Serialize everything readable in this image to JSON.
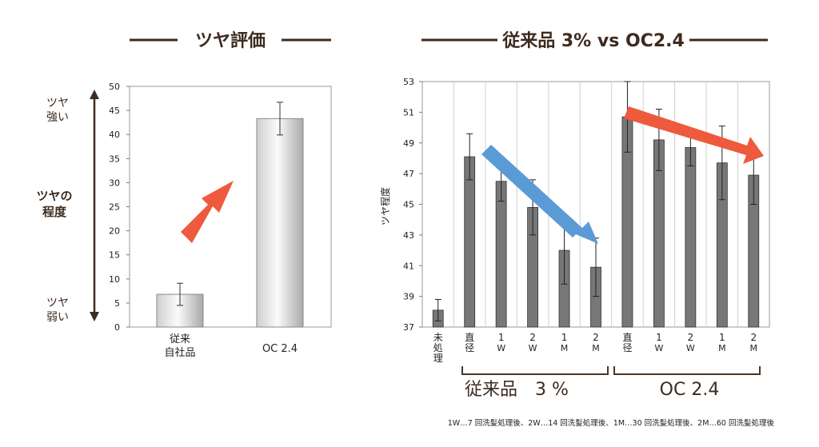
{
  "footnote": "1W…7 回洗髪処理後、2W…14 回洗髪処理後、1M…30 回洗髪処理後、2M…60 回洗髪処理後",
  "colors": {
    "title_text": "#3d2b1f",
    "accent_orange": "#e87a2a",
    "arrow_red": "#ee5a3d",
    "arrow_blue": "#5b9bd5",
    "right_bars": "#777777"
  },
  "charts": [
    {
      "title": "ツヤ評価",
      "side_labels": {
        "strong": [
          "ツヤ",
          "強い"
        ],
        "middle": [
          "ツヤの",
          "程度"
        ],
        "weak": [
          "ツヤ",
          "弱い"
        ]
      }
    },
    {
      "title": "従来品 3% vs OC2.4",
      "ylabel": "ツヤ程度",
      "groups": [
        "従来品　3 %",
        "OC 2.4"
      ]
    }
  ],
  "chart_data": [
    {
      "type": "bar",
      "title": "ツヤ評価",
      "categories": [
        "従来\n自社品",
        "OC 2.4"
      ],
      "category_colors": [
        "#222222",
        "#e87a2a"
      ],
      "values": [
        6.8,
        43.3
      ],
      "errors": [
        2.3,
        3.4
      ],
      "ylim": [
        0,
        50
      ],
      "yticks": [
        0,
        5,
        10,
        15,
        20,
        25,
        30,
        35,
        40,
        45,
        50
      ],
      "grid": false
    },
    {
      "type": "bar",
      "title": "従来品 3% vs OC2.4",
      "ylabel": "ツヤ程度",
      "categories": [
        "未処理",
        "直径",
        "1W",
        "2W",
        "1M",
        "2M",
        "直径",
        "1W",
        "2W",
        "1M",
        "2M"
      ],
      "values": [
        38.1,
        48.1,
        46.5,
        44.8,
        42.0,
        40.9,
        50.7,
        49.2,
        48.7,
        47.7,
        46.9
      ],
      "errors": [
        0.7,
        1.5,
        1.3,
        1.8,
        2.2,
        1.9,
        2.3,
        2.0,
        1.2,
        2.4,
        1.9
      ],
      "ylim": [
        37,
        53
      ],
      "yticks": [
        37,
        39,
        41,
        43,
        45,
        47,
        49,
        51,
        53
      ],
      "grid": "vertical"
    }
  ]
}
